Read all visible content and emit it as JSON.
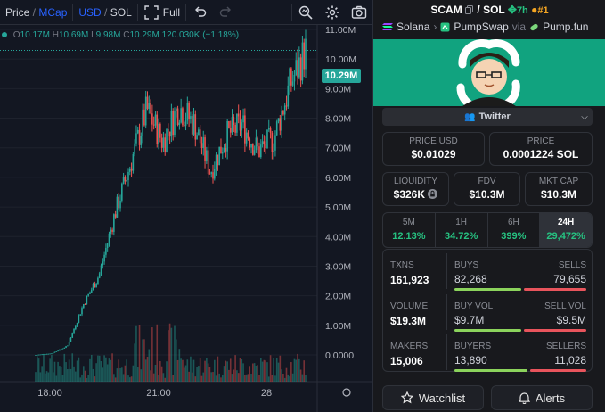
{
  "toolbar": {
    "price_label": "Price",
    "mcap_label": "MCap",
    "usd_label": "USD",
    "sol_label": "SOL",
    "full_label": "Full"
  },
  "ohlc": {
    "o_label": "O",
    "o": "10.17M",
    "h_label": "H",
    "h": "10.69M",
    "l_label": "L",
    "l": "9.98M",
    "c_label": "C",
    "c": "10.29M",
    "volume": "120.030K",
    "change": "(+1.18%)"
  },
  "chart_data": {
    "type": "candlestick",
    "title": "",
    "xlabel": "",
    "ylabel": "",
    "x_ticks": [
      "18:00",
      "21:00",
      "28"
    ],
    "y_ticks": [
      "11.00M",
      "10.00M",
      "9.00M",
      "8.00M",
      "7.00M",
      "6.00M",
      "5.00M",
      "4.00M",
      "3.00M",
      "2.00M",
      "1.00M",
      "0.0000"
    ],
    "ylim": [
      0,
      11000000
    ],
    "last_price_label": "10.29M",
    "last_price": 10290000,
    "trend": [
      {
        "x": "16:15",
        "y": 0
      },
      {
        "x": "17:00",
        "y": 50000
      },
      {
        "x": "18:00",
        "y": 300000
      },
      {
        "x": "19:00",
        "y": 1700000
      },
      {
        "x": "19:30",
        "y": 2700000
      },
      {
        "x": "20:00",
        "y": 4800000
      },
      {
        "x": "20:15",
        "y": 6500000
      },
      {
        "x": "20:30",
        "y": 8300000
      },
      {
        "x": "20:45",
        "y": 7200000
      },
      {
        "x": "21:00",
        "y": 8400000
      },
      {
        "x": "21:30",
        "y": 7800000
      },
      {
        "x": "22:00",
        "y": 6200000
      },
      {
        "x": "22:30",
        "y": 7400000
      },
      {
        "x": "23:00",
        "y": 7800000
      },
      {
        "x": "23:30",
        "y": 6900000
      },
      {
        "x": "00:00",
        "y": 7300000
      },
      {
        "x": "00:30",
        "y": 9100000
      },
      {
        "x": "00:50",
        "y": 10290000
      }
    ]
  },
  "pair": {
    "base": "SCAM",
    "slash": "/",
    "quote": "SOL",
    "age": "7h",
    "rank": "#1",
    "chain": "Solana",
    "dex": "PumpSwap",
    "via": "via",
    "launchpad": "Pump.fun"
  },
  "twitter_label": "Twitter",
  "cards": {
    "price_usd": {
      "label": "PRICE USD",
      "value": "$0.01029"
    },
    "price_sol": {
      "label": "PRICE",
      "value": "0.0001224 SOL"
    },
    "liquidity": {
      "label": "LIQUIDITY",
      "value": "$326K"
    },
    "fdv": {
      "label": "FDV",
      "value": "$10.3M"
    },
    "mkt_cap": {
      "label": "MKT CAP",
      "value": "$10.3M"
    }
  },
  "timeframes": [
    {
      "label": "5M",
      "value": "12.13%"
    },
    {
      "label": "1H",
      "value": "34.72%"
    },
    {
      "label": "6H",
      "value": "399%"
    },
    {
      "label": "24H",
      "value": "29,472%"
    }
  ],
  "stats": {
    "txns": {
      "label": "TXNS",
      "value": "161,923",
      "buy_label": "BUYS",
      "buy": "82,268",
      "sell_label": "SELLS",
      "sell": "79,655",
      "buy_share": 0.508
    },
    "volume": {
      "label": "VOLUME",
      "value": "$19.3M",
      "buy_label": "BUY VOL",
      "buy": "$9.7M",
      "sell_label": "SELL VOL",
      "sell": "$9.5M",
      "buy_share": 0.505
    },
    "makers": {
      "label": "MAKERS",
      "value": "15,006",
      "buy_label": "BUYERS",
      "buy": "13,890",
      "sell_label": "SELLERS",
      "sell": "11,028",
      "buy_share": 0.557
    }
  },
  "actions": {
    "watchlist": "Watchlist",
    "alerts": "Alerts"
  },
  "colors": {
    "up": "#26a69a",
    "down": "#ef5350",
    "banner": "#11a37f",
    "accent": "#2962ff"
  }
}
